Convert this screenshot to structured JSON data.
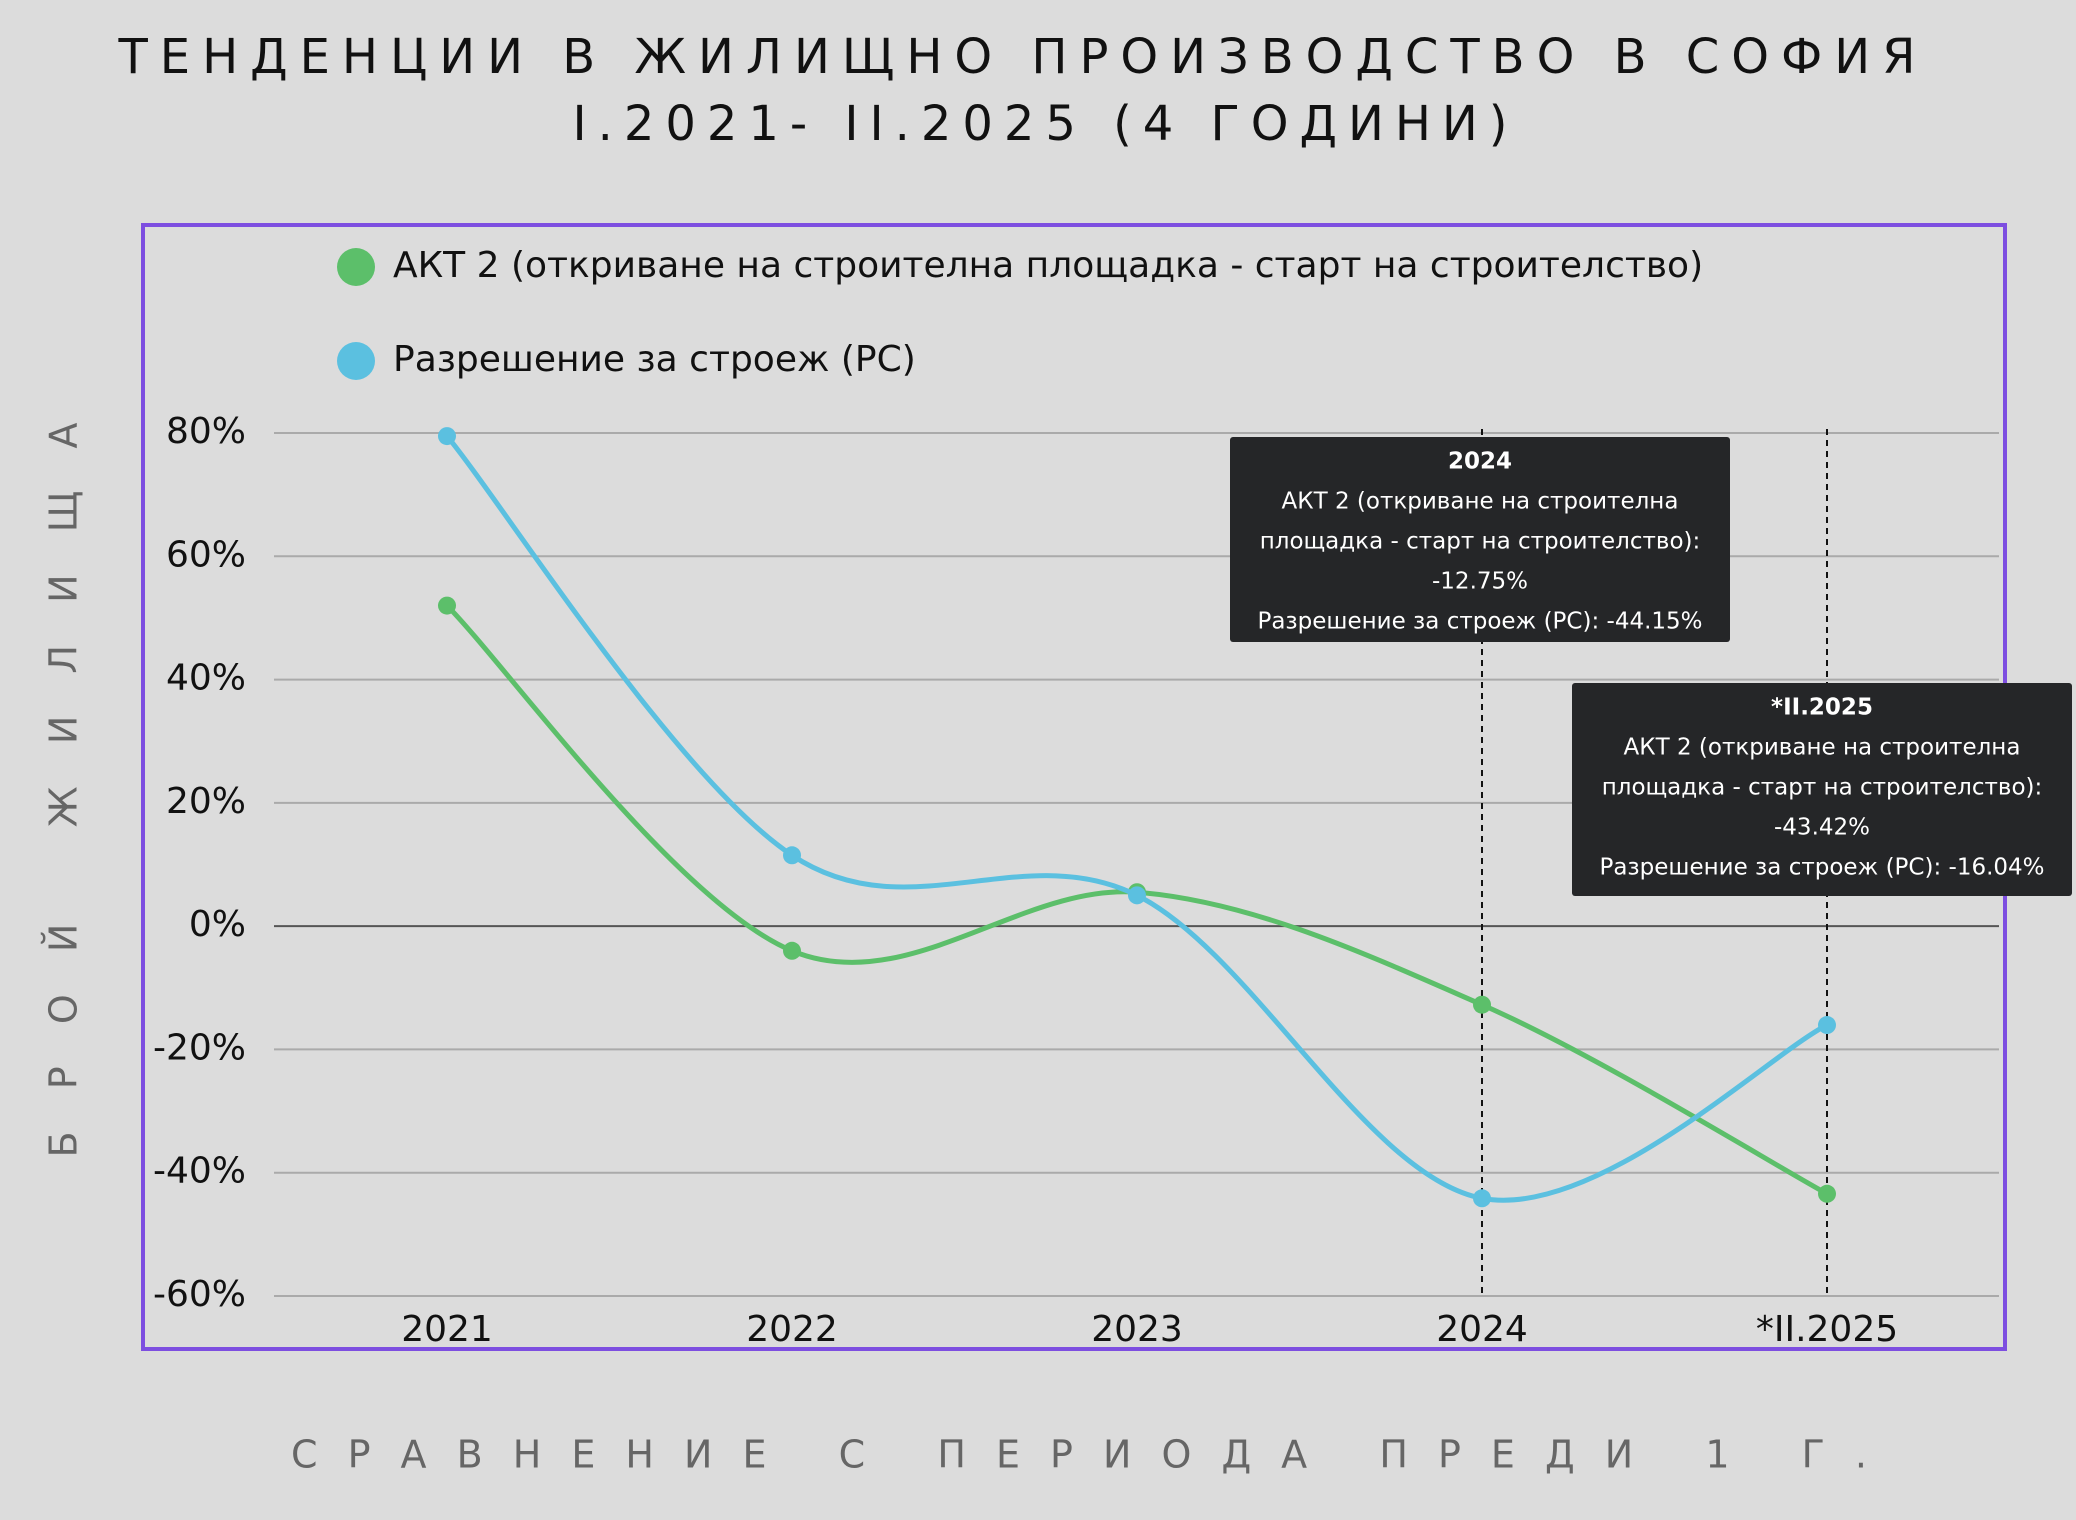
{
  "chart_data": {
    "type": "line",
    "title": [
      "ТЕНДЕНЦИИ В ЖИЛИЩНО ПРОИЗВОДСТВО В СОФИЯ",
      "I.2021- II.2025 (4 ГОДИНИ)"
    ],
    "x_label": "СРАВНЕНИЕ С ПЕРИОДА ПРЕДИ 1 Г.",
    "y_label": "БРОЙ ЖИЛИЩА",
    "categories": [
      "2021",
      "2022",
      "2023",
      "2024",
      "*II.2025"
    ],
    "series": [
      {
        "name": "АКТ 2 (откриване на строителна площадка - старт на строителство)",
        "color": "#5cbf6a",
        "values": [
          52,
          -4,
          5.5,
          -12.75,
          -43.42
        ]
      },
      {
        "name": "Разрешение за строеж (РС)",
        "color": "#5bc0e0",
        "values": [
          79.5,
          11.5,
          5,
          -44.15,
          -16.04
        ]
      }
    ],
    "ylim": [
      -60,
      80
    ],
    "yticks": [
      {
        "value": 80,
        "label": "80%"
      },
      {
        "value": 60,
        "label": "60%"
      },
      {
        "value": 40,
        "label": "40%"
      },
      {
        "value": 20,
        "label": "20%"
      },
      {
        "value": 0,
        "label": "0%"
      },
      {
        "value": -20,
        "label": "-20%"
      },
      {
        "value": -40,
        "label": "-40%"
      },
      {
        "value": -60,
        "label": "-60%"
      }
    ],
    "grid": true,
    "tooltips": [
      {
        "category": "2024",
        "lines": [
          "АКТ 2 (откриване на строителна",
          "площадка - старт на строителство):",
          "-12.75%",
          "Разрешение за строеж (РС): -44.15%"
        ]
      },
      {
        "category": "*II.2025",
        "lines": [
          "АКТ 2 (откриване на строителна",
          "площадка - старт на строителство):",
          "-43.42%",
          "Разрешение за строеж (РС): -16.04%"
        ]
      }
    ]
  }
}
